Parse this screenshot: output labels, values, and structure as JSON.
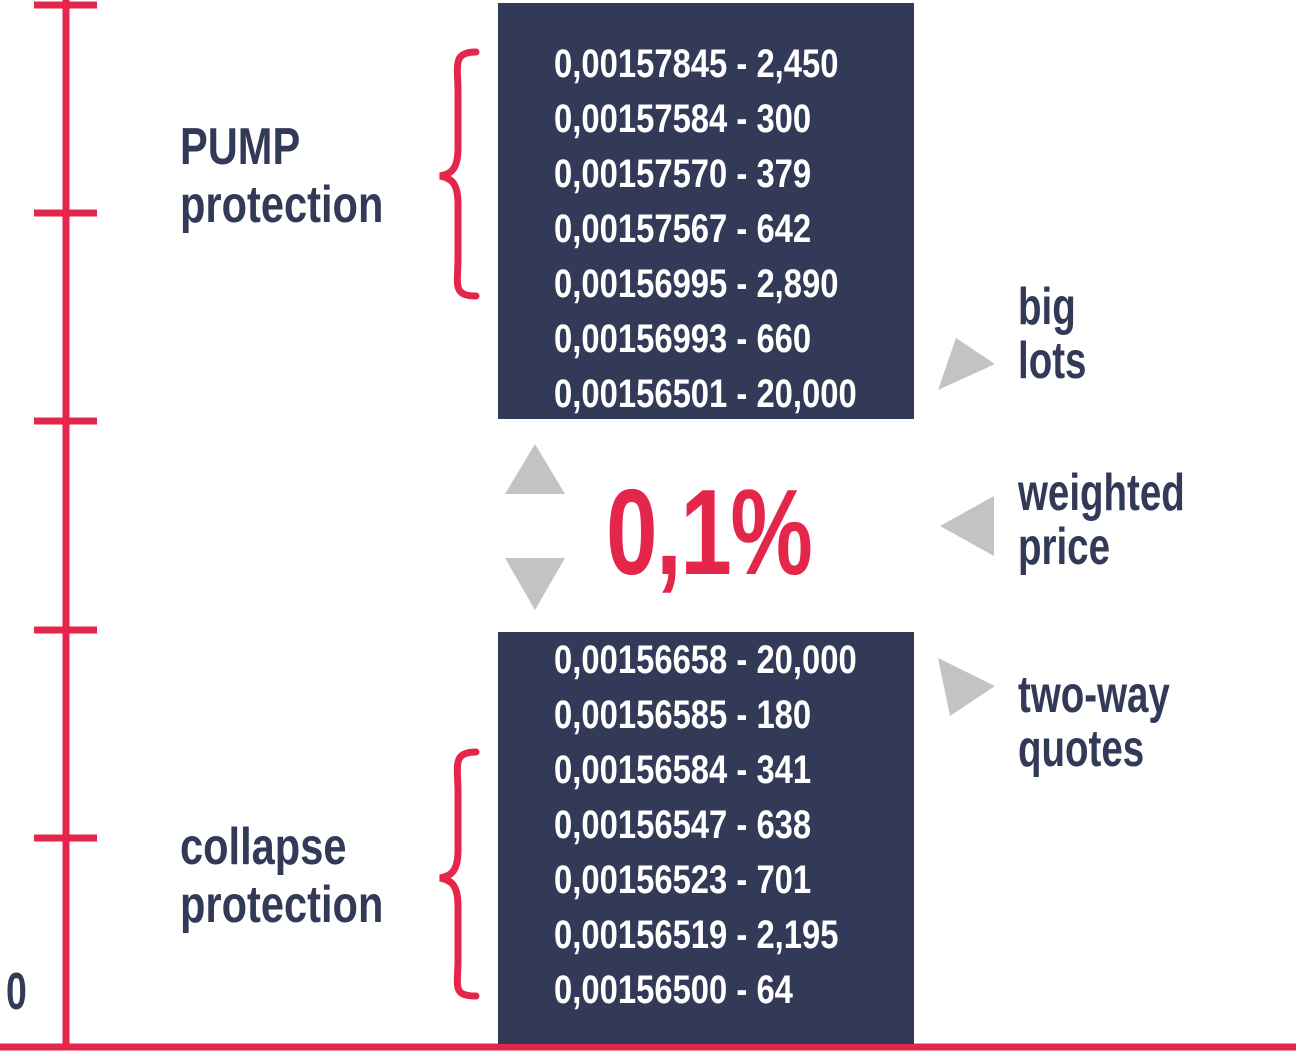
{
  "axis": {
    "zero_label": "0",
    "color": "#e4264a"
  },
  "labels": {
    "pump": [
      "PUMP",
      "protection"
    ],
    "collapse": [
      "collapse",
      "protection"
    ]
  },
  "asks": [
    "0,00157845 - 2,450",
    "0,00157584 - 300",
    "0,00157570 - 379",
    "0,00157567 - 642",
    "0,00156995 - 2,890",
    "0,00156993 - 660",
    "0,00156501 - 20,000"
  ],
  "bids": [
    "0,00156658 - 20,000",
    "0,00156585 - 180",
    "0,00156584 - 341",
    "0,00156547 - 638",
    "0,00156523 - 701",
    "0,00156519 - 2,195",
    "0,00156500 - 64"
  ],
  "spread": "0,1%",
  "notes": {
    "big_lots": [
      "big",
      "lots"
    ],
    "weighted_price": [
      "weighted",
      "price"
    ],
    "two_way_quotes": [
      "two-way",
      "quotes"
    ]
  },
  "colors": {
    "navy": "#333a58",
    "red": "#e4264a",
    "gray": "#c3c3c3"
  }
}
